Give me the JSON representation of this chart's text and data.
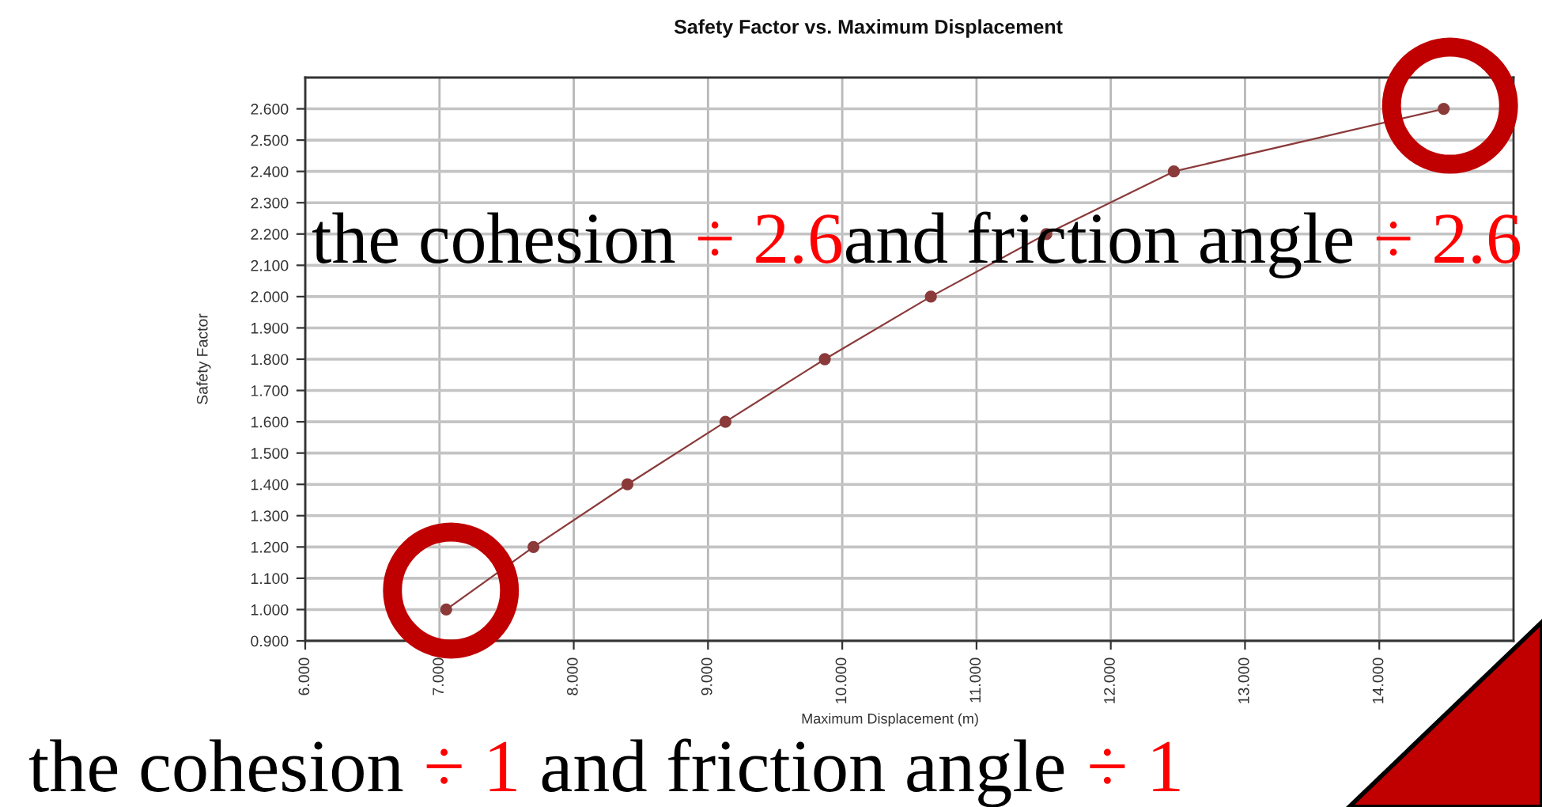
{
  "chart_data": {
    "type": "line",
    "title": "Safety Factor vs. Maximum Displacement",
    "xlabel": "Maximum Displacement (m)",
    "ylabel": "Safety Factor",
    "x": [
      7.05,
      7.7,
      8.4,
      9.13,
      9.87,
      10.66,
      11.52,
      12.47,
      14.48
    ],
    "series": [
      {
        "color": "#8b3a3a",
        "values": [
          1.0,
          1.2,
          1.4,
          1.6,
          1.8,
          2.0,
          2.2,
          2.4,
          2.6
        ]
      }
    ],
    "xlim": [
      6,
      15
    ],
    "xticks": [
      {
        "value": 6,
        "label": "6.000"
      },
      {
        "value": 7,
        "label": "7.000"
      },
      {
        "value": 8,
        "label": "8.000"
      },
      {
        "value": 9,
        "label": "9.000"
      },
      {
        "value": 10,
        "label": "10.000"
      },
      {
        "value": 11,
        "label": "11.000"
      },
      {
        "value": 12,
        "label": "12.000"
      },
      {
        "value": 13,
        "label": "13.000"
      },
      {
        "value": 14,
        "label": "14.000"
      }
    ],
    "ylim": [
      0.9,
      2.7
    ],
    "yticks": [
      {
        "value": 0.9,
        "label": "0.900"
      },
      {
        "value": 1.0,
        "label": "1.000"
      },
      {
        "value": 1.1,
        "label": "1.100"
      },
      {
        "value": 1.2,
        "label": "1.200"
      },
      {
        "value": 1.3,
        "label": "1.300"
      },
      {
        "value": 1.4,
        "label": "1.400"
      },
      {
        "value": 1.5,
        "label": "1.500"
      },
      {
        "value": 1.6,
        "label": "1.600"
      },
      {
        "value": 1.7,
        "label": "1.700"
      },
      {
        "value": 1.8,
        "label": "1.800"
      },
      {
        "value": 1.9,
        "label": "1.900"
      },
      {
        "value": 2.0,
        "label": "2.000"
      },
      {
        "value": 2.1,
        "label": "2.100"
      },
      {
        "value": 2.2,
        "label": "2.200"
      },
      {
        "value": 2.3,
        "label": "2.300"
      },
      {
        "value": 2.4,
        "label": "2.400"
      },
      {
        "value": 2.5,
        "label": "2.500"
      },
      {
        "value": 2.6,
        "label": "2.600"
      }
    ],
    "grid": true,
    "marker": "circle",
    "line_style": "solid",
    "annotations": [
      "the cohesion ",
      "÷ 2.6",
      "and friction angle ",
      "÷ 2.6",
      "the cohesion ",
      "÷ 1",
      " and friction angle ",
      "÷ 1"
    ]
  }
}
